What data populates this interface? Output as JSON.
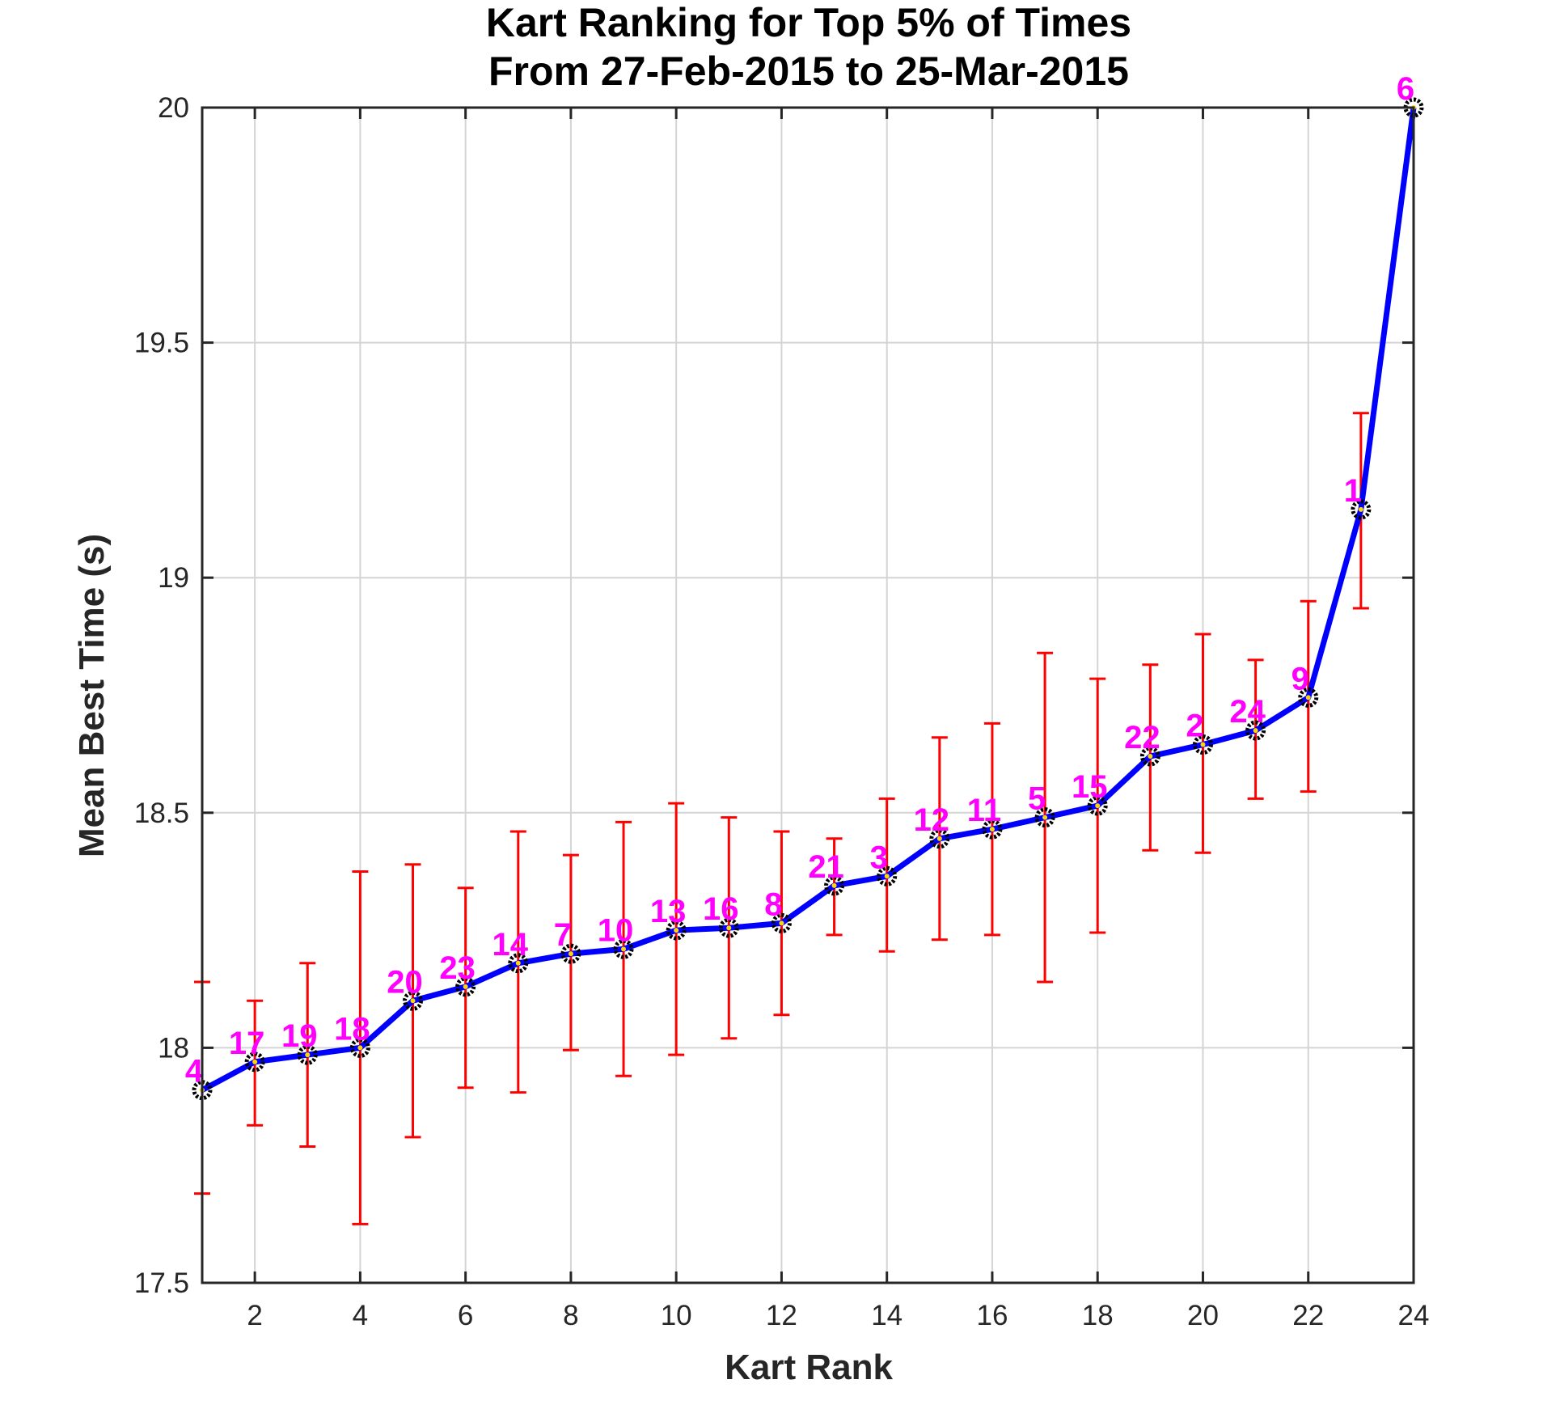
{
  "chart_data": {
    "type": "line",
    "title": [
      "Kart Ranking for Top 5% of Times",
      "From 27-Feb-2015 to 25-Mar-2015"
    ],
    "xlabel": "Kart Rank",
    "ylabel": "Mean Best Time (s)",
    "xlim": [
      1,
      24
    ],
    "ylim": [
      17.5,
      20
    ],
    "xticks": [
      2,
      4,
      6,
      8,
      10,
      12,
      14,
      16,
      18,
      20,
      22,
      24
    ],
    "yticks": [
      17.5,
      18,
      18.5,
      19,
      19.5,
      20
    ],
    "grid": true,
    "colors": {
      "line": "#0000ff",
      "errorbar": "#ff0000",
      "marker": "#000000",
      "kart_label": "#ff00ff"
    },
    "x": [
      1,
      2,
      3,
      4,
      5,
      6,
      7,
      8,
      9,
      10,
      11,
      12,
      13,
      14,
      15,
      16,
      17,
      18,
      19,
      20,
      21,
      22,
      23,
      24
    ],
    "y": [
      17.91,
      17.97,
      17.985,
      18.0,
      18.1,
      18.13,
      18.18,
      18.2,
      18.21,
      18.25,
      18.255,
      18.265,
      18.345,
      18.365,
      18.445,
      18.465,
      18.49,
      18.515,
      18.62,
      18.645,
      18.675,
      18.745,
      19.145,
      20.0
    ],
    "error_lower": [
      17.69,
      17.835,
      17.79,
      17.625,
      17.81,
      17.915,
      17.905,
      17.995,
      17.94,
      17.985,
      18.02,
      18.07,
      18.24,
      18.205,
      18.23,
      18.24,
      18.14,
      18.245,
      18.42,
      18.415,
      18.53,
      18.545,
      18.935,
      null
    ],
    "error_upper": [
      18.14,
      18.1,
      18.18,
      18.375,
      18.39,
      18.34,
      18.46,
      18.41,
      18.48,
      18.52,
      18.49,
      18.46,
      18.445,
      18.53,
      18.66,
      18.69,
      18.84,
      18.785,
      18.815,
      18.88,
      18.825,
      18.95,
      19.35,
      null
    ],
    "kart_labels": [
      "4",
      "17",
      "19",
      "18",
      "20",
      "23",
      "14",
      "7",
      "10",
      "13",
      "16",
      "8",
      "21",
      "3",
      "12",
      "11",
      "5",
      "15",
      "22",
      "2",
      "24",
      "9",
      "1",
      "6"
    ]
  }
}
